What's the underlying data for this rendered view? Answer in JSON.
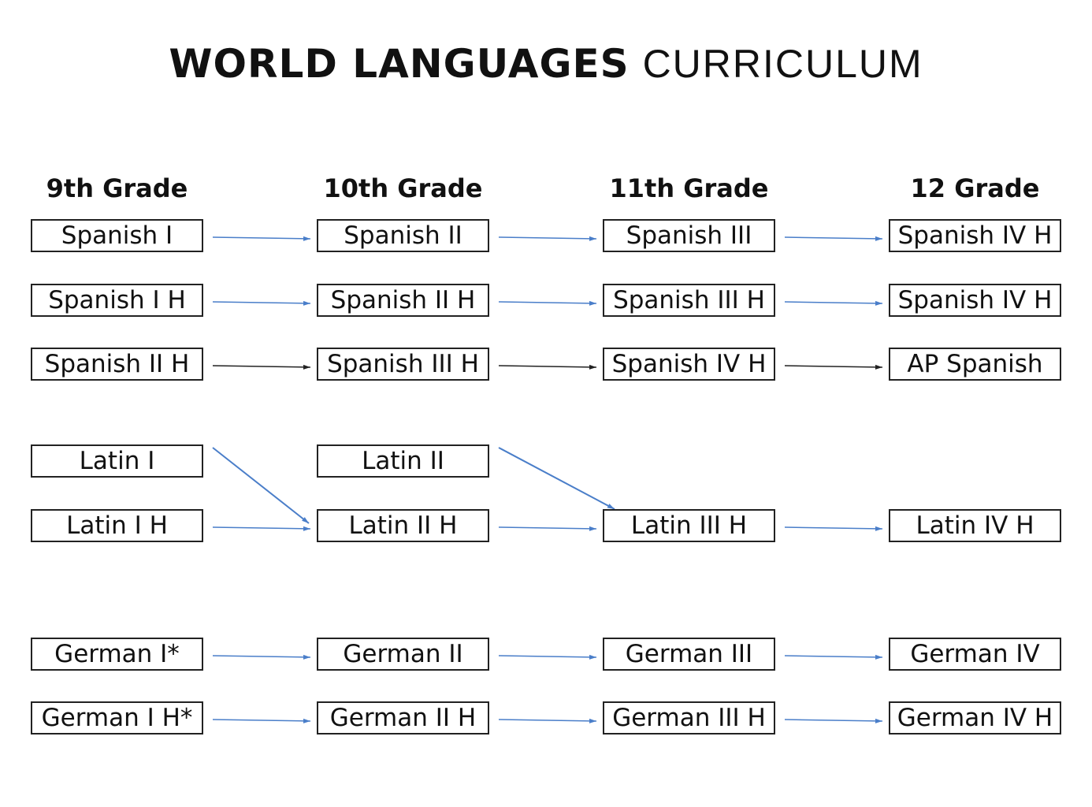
{
  "title": {
    "bold": "WORLD LANGUAGES",
    "light": "CURRICULUM"
  },
  "grades": [
    "9th Grade",
    "10th Grade",
    "11th Grade",
    "12 Grade"
  ],
  "courses": [
    [
      "Spanish I",
      "Spanish I H",
      "Spanish II H",
      "Latin I",
      "Latin I H",
      "German I*",
      "German I H*"
    ],
    [
      "Spanish II",
      "Spanish II H",
      "Spanish III H",
      "Latin II",
      "Latin II H",
      "German II",
      "German II H"
    ],
    [
      "Spanish III",
      "Spanish III H",
      "Spanish IV H",
      null,
      "Latin III H",
      "German III",
      "German III H"
    ],
    [
      "Spanish IV H",
      "Spanish IV H",
      "AP Spanish",
      null,
      "Latin IV H",
      "German IV",
      "German IV H"
    ]
  ],
  "colors": {
    "arrow": "#4a7ec9",
    "arrow_alt": "#222222",
    "border": "#222222"
  },
  "connections": [
    {
      "from": [
        0,
        0
      ],
      "to": [
        1,
        0
      ]
    },
    {
      "from": [
        1,
        0
      ],
      "to": [
        2,
        0
      ]
    },
    {
      "from": [
        2,
        0
      ],
      "to": [
        3,
        0
      ]
    },
    {
      "from": [
        0,
        1
      ],
      "to": [
        1,
        1
      ]
    },
    {
      "from": [
        1,
        1
      ],
      "to": [
        2,
        1
      ]
    },
    {
      "from": [
        2,
        1
      ],
      "to": [
        3,
        1
      ]
    },
    {
      "from": [
        0,
        2
      ],
      "to": [
        1,
        2
      ],
      "color": "arrow_alt"
    },
    {
      "from": [
        1,
        2
      ],
      "to": [
        2,
        2
      ],
      "color": "arrow_alt"
    },
    {
      "from": [
        2,
        2
      ],
      "to": [
        3,
        2
      ],
      "color": "arrow_alt"
    },
    {
      "from": [
        0,
        3
      ],
      "to": [
        1,
        4
      ]
    },
    {
      "from": [
        0,
        4
      ],
      "to": [
        1,
        4
      ]
    },
    {
      "from": [
        1,
        3
      ],
      "to": [
        2,
        4
      ]
    },
    {
      "from": [
        1,
        4
      ],
      "to": [
        2,
        4
      ]
    },
    {
      "from": [
        2,
        4
      ],
      "to": [
        3,
        4
      ]
    },
    {
      "from": [
        0,
        5
      ],
      "to": [
        1,
        5
      ]
    },
    {
      "from": [
        1,
        5
      ],
      "to": [
        2,
        5
      ]
    },
    {
      "from": [
        2,
        5
      ],
      "to": [
        3,
        5
      ]
    },
    {
      "from": [
        0,
        6
      ],
      "to": [
        1,
        6
      ]
    },
    {
      "from": [
        1,
        6
      ],
      "to": [
        2,
        6
      ]
    },
    {
      "from": [
        2,
        6
      ],
      "to": [
        3,
        6
      ]
    }
  ]
}
